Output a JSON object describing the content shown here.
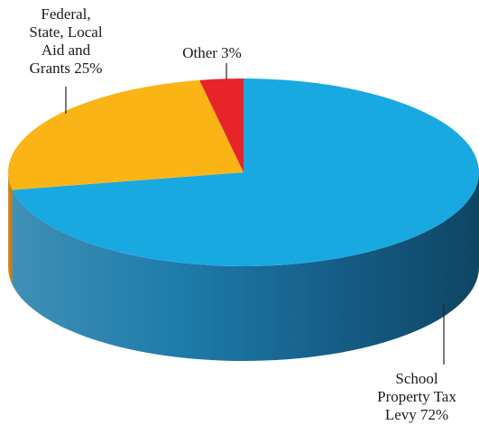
{
  "chart_data": {
    "type": "pie",
    "title": "",
    "slices": [
      {
        "label": "School\nProperty Tax\nLevy 72%",
        "value": 72,
        "color": "#19a9e1"
      },
      {
        "label": "Federal,\nState, Local\nAid and\nGrants 25%",
        "value": 25,
        "color": "#fbb416"
      },
      {
        "label": "Other 3%",
        "value": 3,
        "color": "#e8242b"
      }
    ]
  }
}
